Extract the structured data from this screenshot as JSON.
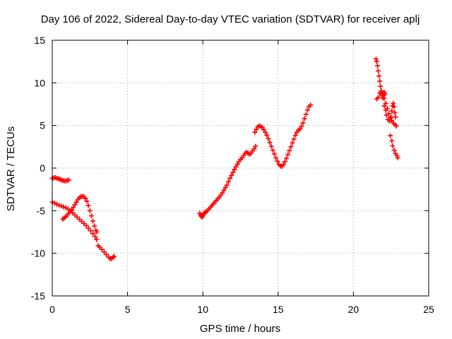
{
  "chart_data": {
    "type": "scatter",
    "title": "Day 106 of 2022, Sidereal Day-to-day VTEC variation (SDTVAR) for receiver aplj",
    "xlabel": "GPS time / hours",
    "ylabel": "SDTVAR / TECUs",
    "xlim": [
      0,
      25
    ],
    "ylim": [
      -15,
      15
    ],
    "xticks": [
      0,
      5,
      10,
      15,
      20,
      25
    ],
    "yticks": [
      -15,
      -10,
      -5,
      0,
      5,
      10,
      15
    ],
    "grid": true,
    "marker": "+",
    "color": "#ff0000",
    "series": [
      {
        "points": [
          [
            0.0,
            -1.2
          ],
          [
            0.1,
            -1.15
          ],
          [
            0.2,
            -1.1
          ],
          [
            0.3,
            -1.2
          ],
          [
            0.4,
            -1.25
          ],
          [
            0.5,
            -1.3
          ],
          [
            0.6,
            -1.4
          ],
          [
            0.7,
            -1.45
          ],
          [
            0.8,
            -1.5
          ],
          [
            0.9,
            -1.5
          ],
          [
            1.0,
            -1.45
          ],
          [
            1.1,
            -1.4
          ],
          [
            0.0,
            -4.0
          ],
          [
            0.15,
            -4.1
          ],
          [
            0.3,
            -4.25
          ],
          [
            0.45,
            -4.35
          ],
          [
            0.6,
            -4.45
          ],
          [
            0.75,
            -4.55
          ],
          [
            0.9,
            -4.65
          ],
          [
            1.05,
            -4.8
          ],
          [
            1.2,
            -5.0
          ],
          [
            1.35,
            -5.25
          ],
          [
            1.5,
            -5.5
          ],
          [
            1.65,
            -5.75
          ],
          [
            1.8,
            -6.0
          ],
          [
            1.95,
            -6.25
          ],
          [
            2.1,
            -6.5
          ],
          [
            2.25,
            -6.75
          ],
          [
            2.4,
            -7.05
          ],
          [
            2.55,
            -7.35
          ],
          [
            2.7,
            -7.7
          ],
          [
            2.85,
            -8.05
          ],
          [
            2.95,
            -8.4
          ],
          [
            3.05,
            -9.1
          ],
          [
            3.15,
            -9.3
          ],
          [
            3.3,
            -9.55
          ],
          [
            3.45,
            -9.85
          ],
          [
            3.6,
            -10.15
          ],
          [
            3.75,
            -10.45
          ],
          [
            3.85,
            -10.65
          ],
          [
            3.95,
            -10.6
          ],
          [
            4.05,
            -10.45
          ],
          [
            4.1,
            -10.35
          ],
          [
            0.7,
            -6.0
          ],
          [
            0.8,
            -5.85
          ],
          [
            0.9,
            -5.7
          ],
          [
            1.0,
            -5.5
          ],
          [
            1.1,
            -5.3
          ],
          [
            1.2,
            -5.1
          ],
          [
            1.3,
            -4.9
          ],
          [
            1.4,
            -4.6
          ],
          [
            1.5,
            -4.3
          ],
          [
            1.6,
            -4.0
          ],
          [
            1.7,
            -3.7
          ],
          [
            1.8,
            -3.5
          ],
          [
            1.9,
            -3.35
          ],
          [
            2.0,
            -3.3
          ],
          [
            2.1,
            -3.35
          ],
          [
            2.2,
            -3.55
          ],
          [
            2.3,
            -3.9
          ],
          [
            2.4,
            -4.4
          ],
          [
            2.5,
            -5.0
          ],
          [
            2.6,
            -5.6
          ],
          [
            2.7,
            -6.2
          ],
          [
            2.8,
            -6.8
          ],
          [
            2.9,
            -7.3
          ],
          [
            2.95,
            -7.5
          ],
          [
            9.8,
            -5.3
          ],
          [
            9.85,
            -5.5
          ],
          [
            9.9,
            -5.65
          ],
          [
            9.95,
            -5.75
          ],
          [
            10.0,
            -5.6
          ],
          [
            10.05,
            -5.4
          ],
          [
            10.1,
            -5.3
          ],
          [
            10.15,
            -5.2
          ],
          [
            10.2,
            -5.15
          ],
          [
            10.3,
            -5.0
          ],
          [
            10.4,
            -4.8
          ],
          [
            10.5,
            -4.6
          ],
          [
            10.6,
            -4.4
          ],
          [
            10.7,
            -4.2
          ],
          [
            10.8,
            -4.0
          ],
          [
            10.9,
            -3.8
          ],
          [
            11.0,
            -3.6
          ],
          [
            11.1,
            -3.4
          ],
          [
            11.2,
            -3.15
          ],
          [
            11.3,
            -2.9
          ],
          [
            11.4,
            -2.6
          ],
          [
            11.5,
            -2.3
          ],
          [
            11.6,
            -2.0
          ],
          [
            11.7,
            -1.6
          ],
          [
            11.8,
            -1.2
          ],
          [
            11.9,
            -0.85
          ],
          [
            12.0,
            -0.5
          ],
          [
            12.1,
            -0.15
          ],
          [
            12.2,
            0.15
          ],
          [
            12.3,
            0.45
          ],
          [
            12.4,
            0.75
          ],
          [
            12.5,
            1.0
          ],
          [
            12.6,
            1.2
          ],
          [
            12.7,
            1.45
          ],
          [
            12.8,
            1.7
          ],
          [
            12.9,
            1.9
          ],
          [
            13.0,
            1.75
          ],
          [
            13.1,
            1.6
          ],
          [
            13.2,
            1.75
          ],
          [
            13.3,
            2.0
          ],
          [
            13.4,
            2.25
          ],
          [
            13.5,
            2.55
          ],
          [
            13.45,
            4.2
          ],
          [
            13.55,
            4.55
          ],
          [
            13.65,
            4.85
          ],
          [
            13.75,
            4.95
          ],
          [
            13.85,
            4.9
          ],
          [
            13.95,
            4.75
          ],
          [
            14.05,
            4.5
          ],
          [
            14.15,
            4.2
          ],
          [
            14.25,
            3.85
          ],
          [
            14.35,
            3.45
          ],
          [
            14.45,
            3.0
          ],
          [
            14.55,
            2.55
          ],
          [
            14.65,
            2.1
          ],
          [
            14.75,
            1.65
          ],
          [
            14.85,
            1.2
          ],
          [
            14.95,
            0.8
          ],
          [
            15.05,
            0.45
          ],
          [
            15.15,
            0.25
          ],
          [
            15.25,
            0.2
          ],
          [
            15.35,
            0.4
          ],
          [
            15.45,
            0.75
          ],
          [
            15.55,
            1.15
          ],
          [
            15.65,
            1.6
          ],
          [
            15.75,
            2.05
          ],
          [
            15.85,
            2.5
          ],
          [
            15.95,
            2.95
          ],
          [
            16.05,
            3.4
          ],
          [
            16.15,
            3.85
          ],
          [
            16.25,
            4.2
          ],
          [
            16.35,
            4.45
          ],
          [
            16.45,
            4.6
          ],
          [
            16.55,
            4.9
          ],
          [
            16.65,
            5.3
          ],
          [
            16.75,
            5.8
          ],
          [
            16.85,
            6.3
          ],
          [
            16.95,
            6.8
          ],
          [
            17.05,
            7.2
          ],
          [
            17.15,
            7.4
          ],
          [
            21.5,
            12.8
          ],
          [
            21.55,
            12.5
          ],
          [
            21.6,
            12.0
          ],
          [
            21.65,
            11.4
          ],
          [
            21.7,
            10.8
          ],
          [
            21.75,
            10.2
          ],
          [
            21.8,
            9.6
          ],
          [
            21.85,
            9.0
          ],
          [
            21.9,
            8.5
          ],
          [
            21.95,
            8.2
          ],
          [
            22.0,
            8.6
          ],
          [
            22.05,
            8.9
          ],
          [
            22.1,
            8.7
          ],
          [
            21.55,
            8.1
          ],
          [
            21.65,
            8.3
          ],
          [
            21.75,
            8.8
          ],
          [
            21.85,
            9.05
          ],
          [
            21.95,
            8.7
          ],
          [
            22.05,
            8.2
          ],
          [
            22.15,
            7.6
          ],
          [
            22.25,
            7.0
          ],
          [
            22.35,
            6.4
          ],
          [
            22.45,
            5.9
          ],
          [
            22.55,
            5.6
          ],
          [
            22.65,
            5.3
          ],
          [
            22.75,
            5.1
          ],
          [
            22.85,
            4.95
          ],
          [
            22.05,
            7.3
          ],
          [
            22.15,
            6.8
          ],
          [
            22.2,
            6.2
          ],
          [
            22.3,
            5.7
          ],
          [
            22.4,
            5.5
          ],
          [
            22.5,
            6.0
          ],
          [
            22.55,
            6.7
          ],
          [
            22.6,
            7.3
          ],
          [
            22.65,
            7.6
          ],
          [
            22.7,
            7.2
          ],
          [
            22.75,
            6.5
          ],
          [
            22.8,
            6.0
          ],
          [
            22.45,
            3.8
          ],
          [
            22.55,
            3.2
          ],
          [
            22.6,
            2.6
          ],
          [
            22.7,
            2.1
          ],
          [
            22.8,
            1.7
          ],
          [
            22.9,
            1.45
          ],
          [
            22.95,
            1.2
          ]
        ]
      }
    ]
  }
}
